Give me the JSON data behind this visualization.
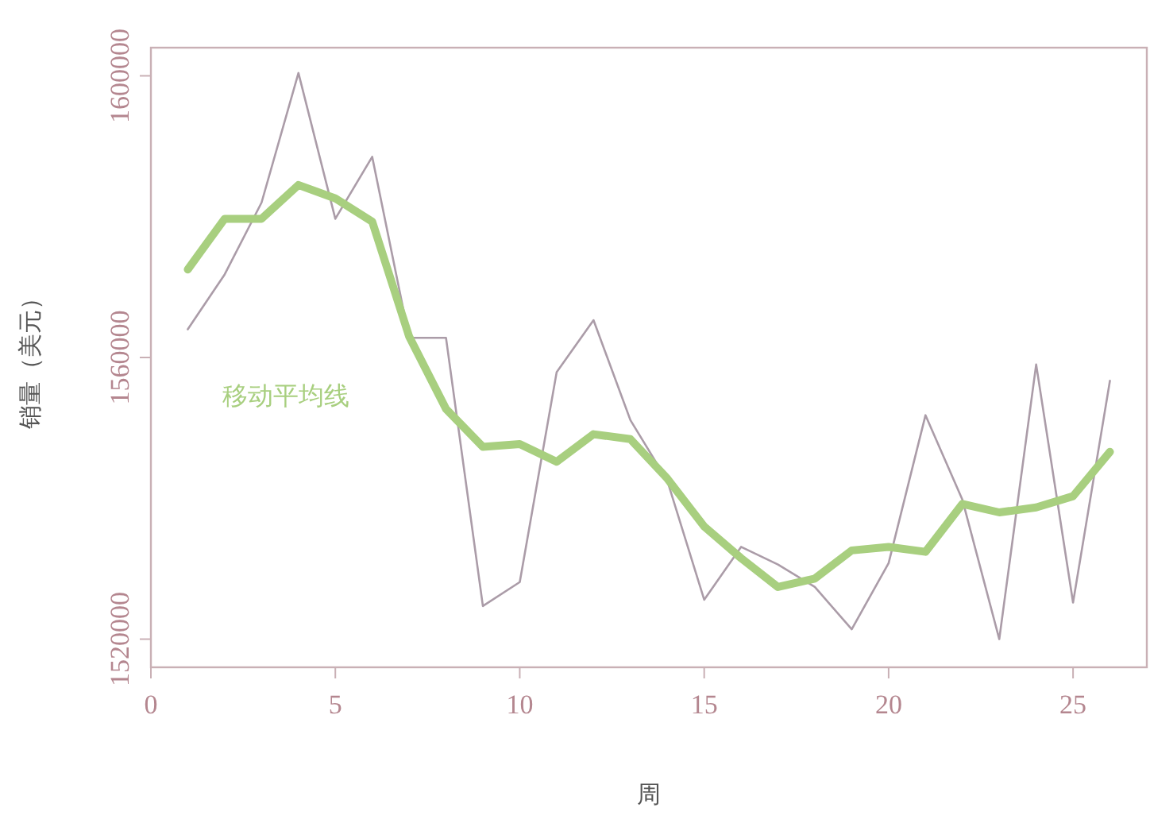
{
  "chart_data": {
    "type": "line",
    "xlabel": "周",
    "ylabel": "销量（美元）",
    "x": [
      1,
      2,
      3,
      4,
      5,
      6,
      7,
      8,
      9,
      10,
      11,
      12,
      13,
      14,
      15,
      16,
      17,
      18,
      19,
      20,
      21,
      22,
      23,
      24,
      25,
      26
    ],
    "series": [
      {
        "color": "#ab9ca8",
        "values": [
          1564000,
          1571800,
          1582000,
          1600400,
          1579700,
          1588500,
          1562800,
          1562800,
          1524700,
          1528100,
          1557900,
          1565300,
          1551100,
          1542500,
          1525600,
          1533100,
          1530600,
          1527400,
          1521400,
          1530800,
          1551800,
          1539800,
          1520000,
          1559000,
          1525200,
          1556700
        ]
      },
      {
        "name": "移动平均线",
        "color": "#a8cf7f",
        "values": [
          1572500,
          1579700,
          1579700,
          1584500,
          1582600,
          1579300,
          1563000,
          1552700,
          1547300,
          1547700,
          1545200,
          1549100,
          1548400,
          1542800,
          1536000,
          1531500,
          1527400,
          1528600,
          1532600,
          1533100,
          1532400,
          1539200,
          1538000,
          1538700,
          1540300,
          1546600
        ]
      }
    ],
    "xlim": [
      0,
      27
    ],
    "ylim": [
      1516000,
      1604000
    ],
    "xticks": [
      0,
      5,
      10,
      15,
      20,
      25
    ],
    "yticks": [
      1520000,
      1560000,
      1600000
    ]
  }
}
